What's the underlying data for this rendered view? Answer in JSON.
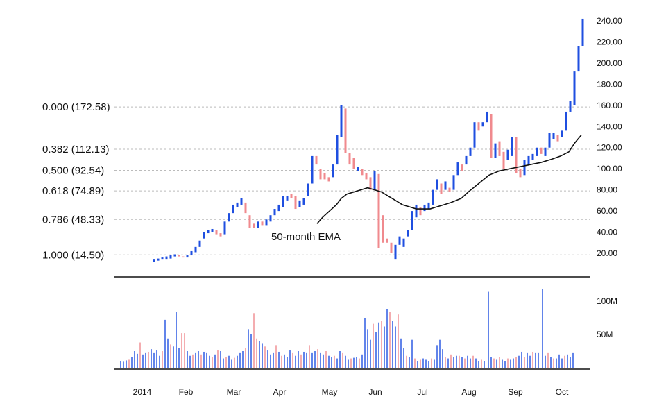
{
  "chart_data": {
    "type": "candlestick",
    "title": "",
    "x_axis": {
      "labels": [
        "2014",
        "Feb",
        "Mar",
        "Apr",
        "May",
        "Jun",
        "Jul",
        "Aug",
        "Sep",
        "Oct"
      ]
    },
    "price_axis": {
      "ticks": [
        "240.00",
        "220.00",
        "200.00",
        "180.00",
        "160.00",
        "140.00",
        "120.00",
        "100.00",
        "80.00",
        "60.00",
        "40.00",
        "20.00"
      ],
      "min": 0,
      "max": 245
    },
    "volume_axis": {
      "ticks": [
        "100M",
        "50M"
      ],
      "max": 130
    },
    "fibonacci_levels": [
      {
        "label": "0.000 (172.58)",
        "value": 158.5
      },
      {
        "label": "0.382 (112.13)",
        "value": 118.5
      },
      {
        "label": "0.500 (92.54)",
        "value": 98.5
      },
      {
        "label": "0.618 (74.89)",
        "value": 79
      },
      {
        "label": "0.786 (48.33)",
        "value": 52
      },
      {
        "label": "1.000 (14.50)",
        "value": 18.5
      }
    ],
    "annotation": "50-month EMA",
    "colors": {
      "up": "#1f4fe0",
      "down": "#f08a8e",
      "ema": "#111111",
      "grid": "#bbbbbb"
    },
    "candles": [
      [
        222,
        12,
        14,
        "u"
      ],
      [
        228,
        13,
        15,
        "u"
      ],
      [
        234,
        14,
        16,
        "u"
      ],
      [
        240,
        14,
        17,
        "u"
      ],
      [
        246,
        15,
        18,
        "u"
      ],
      [
        252,
        17,
        19,
        "u"
      ],
      [
        258,
        17,
        18,
        "d"
      ],
      [
        264,
        16,
        17,
        "d"
      ],
      [
        270,
        16,
        18,
        "u"
      ],
      [
        276,
        18,
        22,
        "u"
      ],
      [
        282,
        21,
        26,
        "u"
      ],
      [
        288,
        26,
        32,
        "u"
      ],
      [
        294,
        34,
        40,
        "u"
      ],
      [
        300,
        39,
        42,
        "u"
      ],
      [
        306,
        40,
        43,
        "u"
      ],
      [
        312,
        38,
        42,
        "d"
      ],
      [
        318,
        36,
        39,
        "d"
      ],
      [
        324,
        38,
        50,
        "u"
      ],
      [
        330,
        50,
        58,
        "u"
      ],
      [
        336,
        58,
        66,
        "u"
      ],
      [
        342,
        64,
        68,
        "u"
      ],
      [
        348,
        66,
        72,
        "u"
      ],
      [
        354,
        58,
        68,
        "d"
      ],
      [
        360,
        44,
        56,
        "d"
      ],
      [
        366,
        44,
        48,
        "d"
      ],
      [
        372,
        44,
        50,
        "u"
      ],
      [
        378,
        46,
        50,
        "d"
      ],
      [
        384,
        46,
        52,
        "u"
      ],
      [
        390,
        50,
        56,
        "u"
      ],
      [
        396,
        56,
        62,
        "u"
      ],
      [
        402,
        60,
        66,
        "u"
      ],
      [
        408,
        64,
        74,
        "u"
      ],
      [
        414,
        70,
        74,
        "u"
      ],
      [
        420,
        72,
        76,
        "d"
      ],
      [
        426,
        62,
        74,
        "d"
      ],
      [
        432,
        64,
        70,
        "u"
      ],
      [
        438,
        66,
        72,
        "u"
      ],
      [
        444,
        74,
        86,
        "u"
      ],
      [
        450,
        86,
        112,
        "u"
      ],
      [
        456,
        104,
        112,
        "d"
      ],
      [
        462,
        90,
        100,
        "d"
      ],
      [
        468,
        90,
        96,
        "d"
      ],
      [
        474,
        88,
        92,
        "d"
      ],
      [
        480,
        92,
        104,
        "u"
      ],
      [
        486,
        104,
        132,
        "u"
      ],
      [
        492,
        130,
        160,
        "u"
      ],
      [
        498,
        115,
        157,
        "d"
      ],
      [
        504,
        104,
        115,
        "d"
      ],
      [
        510,
        100,
        110,
        "d"
      ],
      [
        516,
        98,
        102,
        "u"
      ],
      [
        522,
        94,
        100,
        "d"
      ],
      [
        528,
        90,
        96,
        "d"
      ],
      [
        534,
        80,
        92,
        "d"
      ],
      [
        540,
        80,
        98,
        "u"
      ],
      [
        546,
        25,
        95,
        "d"
      ],
      [
        552,
        30,
        56,
        "d"
      ],
      [
        558,
        30,
        34,
        "d"
      ],
      [
        564,
        20,
        30,
        "d"
      ],
      [
        570,
        14,
        28,
        "u"
      ],
      [
        576,
        28,
        36,
        "u"
      ],
      [
        582,
        26,
        34,
        "u"
      ],
      [
        588,
        36,
        42,
        "u"
      ],
      [
        594,
        42,
        60,
        "u"
      ],
      [
        600,
        54,
        66,
        "u"
      ],
      [
        606,
        56,
        64,
        "d"
      ],
      [
        612,
        60,
        66,
        "u"
      ],
      [
        618,
        62,
        68,
        "u"
      ],
      [
        624,
        66,
        80,
        "u"
      ],
      [
        630,
        80,
        90,
        "u"
      ],
      [
        636,
        76,
        86,
        "d"
      ],
      [
        642,
        80,
        88,
        "u"
      ],
      [
        648,
        78,
        82,
        "d"
      ],
      [
        654,
        80,
        94,
        "u"
      ],
      [
        660,
        94,
        106,
        "u"
      ],
      [
        666,
        98,
        104,
        "d"
      ],
      [
        672,
        104,
        112,
        "u"
      ],
      [
        678,
        112,
        120,
        "u"
      ],
      [
        684,
        120,
        144,
        "u"
      ],
      [
        690,
        136,
        144,
        "d"
      ],
      [
        696,
        140,
        144,
        "u"
      ],
      [
        702,
        144,
        154,
        "u"
      ],
      [
        708,
        110,
        152,
        "d"
      ],
      [
        714,
        110,
        124,
        "u"
      ],
      [
        720,
        112,
        126,
        "d"
      ],
      [
        726,
        100,
        116,
        "d"
      ],
      [
        732,
        108,
        118,
        "u"
      ],
      [
        738,
        112,
        130,
        "u"
      ],
      [
        744,
        96,
        130,
        "d"
      ],
      [
        750,
        92,
        100,
        "d"
      ],
      [
        756,
        94,
        108,
        "u"
      ],
      [
        762,
        104,
        112,
        "u"
      ],
      [
        768,
        108,
        114,
        "u"
      ],
      [
        774,
        112,
        120,
        "u"
      ],
      [
        780,
        114,
        120,
        "d"
      ],
      [
        786,
        112,
        120,
        "u"
      ],
      [
        792,
        120,
        134,
        "u"
      ],
      [
        798,
        128,
        134,
        "u"
      ],
      [
        804,
        126,
        132,
        "d"
      ],
      [
        810,
        130,
        136,
        "u"
      ],
      [
        816,
        136,
        154,
        "u"
      ],
      [
        822,
        154,
        164,
        "u"
      ],
      [
        828,
        160,
        192,
        "u"
      ],
      [
        834,
        192,
        216,
        "u"
      ],
      [
        840,
        216,
        242,
        "u"
      ]
    ],
    "ema": [
      [
        457,
        48
      ],
      [
        465,
        54
      ],
      [
        475,
        60
      ],
      [
        485,
        66
      ],
      [
        492,
        72
      ],
      [
        500,
        76
      ],
      [
        510,
        78
      ],
      [
        520,
        80
      ],
      [
        530,
        82
      ],
      [
        540,
        80
      ],
      [
        550,
        78
      ],
      [
        560,
        74
      ],
      [
        570,
        70
      ],
      [
        580,
        66
      ],
      [
        590,
        64
      ],
      [
        600,
        62
      ],
      [
        610,
        62
      ],
      [
        620,
        62
      ],
      [
        630,
        64
      ],
      [
        640,
        66
      ],
      [
        650,
        68
      ],
      [
        665,
        72
      ],
      [
        675,
        78
      ],
      [
        690,
        86
      ],
      [
        705,
        94
      ],
      [
        720,
        98
      ],
      [
        735,
        100
      ],
      [
        750,
        102
      ],
      [
        765,
        104
      ],
      [
        780,
        106
      ],
      [
        795,
        109
      ],
      [
        808,
        112
      ],
      [
        820,
        116
      ],
      [
        828,
        124
      ],
      [
        838,
        132
      ]
    ],
    "volume": [
      [
        174,
        10,
        "u"
      ],
      [
        178,
        9,
        "u"
      ],
      [
        182,
        11,
        "u"
      ],
      [
        186,
        12,
        "d"
      ],
      [
        190,
        16,
        "u"
      ],
      [
        194,
        25,
        "u"
      ],
      [
        198,
        21,
        "u"
      ],
      [
        202,
        38,
        "d"
      ],
      [
        206,
        20,
        "u"
      ],
      [
        210,
        22,
        "u"
      ],
      [
        214,
        24,
        "d"
      ],
      [
        218,
        28,
        "u"
      ],
      [
        222,
        22,
        "u"
      ],
      [
        226,
        26,
        "u"
      ],
      [
        230,
        18,
        "u"
      ],
      [
        234,
        25,
        "d"
      ],
      [
        238,
        72,
        "u"
      ],
      [
        242,
        44,
        "u"
      ],
      [
        246,
        35,
        "d"
      ],
      [
        250,
        32,
        "u"
      ],
      [
        254,
        84,
        "u"
      ],
      [
        258,
        30,
        "u"
      ],
      [
        262,
        52,
        "d"
      ],
      [
        266,
        52,
        "d"
      ],
      [
        270,
        25,
        "u"
      ],
      [
        274,
        18,
        "u"
      ],
      [
        278,
        20,
        "d"
      ],
      [
        282,
        22,
        "u"
      ],
      [
        286,
        25,
        "u"
      ],
      [
        290,
        20,
        "d"
      ],
      [
        294,
        24,
        "u"
      ],
      [
        298,
        22,
        "u"
      ],
      [
        302,
        18,
        "u"
      ],
      [
        306,
        16,
        "d"
      ],
      [
        310,
        20,
        "u"
      ],
      [
        314,
        26,
        "d"
      ],
      [
        318,
        25,
        "u"
      ],
      [
        322,
        14,
        "u"
      ],
      [
        326,
        16,
        "d"
      ],
      [
        330,
        18,
        "u"
      ],
      [
        334,
        12,
        "u"
      ],
      [
        338,
        15,
        "d"
      ],
      [
        342,
        18,
        "u"
      ],
      [
        346,
        22,
        "u"
      ],
      [
        350,
        25,
        "u"
      ],
      [
        354,
        30,
        "d"
      ],
      [
        358,
        58,
        "u"
      ],
      [
        362,
        50,
        "u"
      ],
      [
        366,
        82,
        "d"
      ],
      [
        370,
        44,
        "d"
      ],
      [
        374,
        40,
        "u"
      ],
      [
        378,
        36,
        "u"
      ],
      [
        382,
        32,
        "d"
      ],
      [
        386,
        26,
        "u"
      ],
      [
        390,
        20,
        "u"
      ],
      [
        394,
        22,
        "u"
      ],
      [
        398,
        34,
        "d"
      ],
      [
        402,
        24,
        "u"
      ],
      [
        406,
        18,
        "d"
      ],
      [
        410,
        20,
        "u"
      ],
      [
        414,
        16,
        "u"
      ],
      [
        418,
        26,
        "u"
      ],
      [
        422,
        22,
        "d"
      ],
      [
        426,
        18,
        "u"
      ],
      [
        430,
        25,
        "u"
      ],
      [
        434,
        20,
        "d"
      ],
      [
        438,
        24,
        "u"
      ],
      [
        442,
        22,
        "u"
      ],
      [
        446,
        34,
        "d"
      ],
      [
        450,
        22,
        "u"
      ],
      [
        454,
        25,
        "u"
      ],
      [
        458,
        28,
        "d"
      ],
      [
        462,
        22,
        "u"
      ],
      [
        466,
        20,
        "u"
      ],
      [
        470,
        25,
        "d"
      ],
      [
        474,
        18,
        "u"
      ],
      [
        478,
        16,
        "u"
      ],
      [
        482,
        18,
        "d"
      ],
      [
        486,
        14,
        "u"
      ],
      [
        490,
        25,
        "u"
      ],
      [
        494,
        22,
        "d"
      ],
      [
        498,
        18,
        "u"
      ],
      [
        502,
        12,
        "u"
      ],
      [
        506,
        14,
        "d"
      ],
      [
        510,
        15,
        "u"
      ],
      [
        514,
        16,
        "u"
      ],
      [
        518,
        14,
        "d"
      ],
      [
        522,
        20,
        "u"
      ],
      [
        526,
        75,
        "u"
      ],
      [
        530,
        58,
        "u"
      ],
      [
        534,
        42,
        "u"
      ],
      [
        538,
        66,
        "d"
      ],
      [
        542,
        54,
        "u"
      ],
      [
        546,
        68,
        "u"
      ],
      [
        550,
        70,
        "d"
      ],
      [
        554,
        62,
        "u"
      ],
      [
        558,
        88,
        "u"
      ],
      [
        562,
        84,
        "d"
      ],
      [
        566,
        70,
        "u"
      ],
      [
        570,
        62,
        "u"
      ],
      [
        574,
        80,
        "d"
      ],
      [
        578,
        44,
        "u"
      ],
      [
        582,
        30,
        "u"
      ],
      [
        586,
        18,
        "d"
      ],
      [
        590,
        16,
        "u"
      ],
      [
        594,
        42,
        "u"
      ],
      [
        598,
        14,
        "d"
      ],
      [
        602,
        10,
        "u"
      ],
      [
        606,
        12,
        "d"
      ],
      [
        610,
        14,
        "u"
      ],
      [
        614,
        12,
        "u"
      ],
      [
        618,
        10,
        "u"
      ],
      [
        622,
        14,
        "d"
      ],
      [
        626,
        12,
        "u"
      ],
      [
        630,
        34,
        "u"
      ],
      [
        634,
        42,
        "u"
      ],
      [
        638,
        28,
        "u"
      ],
      [
        642,
        16,
        "d"
      ],
      [
        646,
        14,
        "u"
      ],
      [
        650,
        20,
        "d"
      ],
      [
        654,
        16,
        "u"
      ],
      [
        658,
        18,
        "u"
      ],
      [
        662,
        18,
        "d"
      ],
      [
        666,
        16,
        "u"
      ],
      [
        670,
        14,
        "d"
      ],
      [
        674,
        18,
        "u"
      ],
      [
        678,
        14,
        "u"
      ],
      [
        682,
        18,
        "d"
      ],
      [
        686,
        14,
        "u"
      ],
      [
        690,
        10,
        "u"
      ],
      [
        694,
        12,
        "d"
      ],
      [
        698,
        10,
        "u"
      ],
      [
        704,
        114,
        "u"
      ],
      [
        708,
        16,
        "u"
      ],
      [
        712,
        14,
        "d"
      ],
      [
        716,
        12,
        "u"
      ],
      [
        720,
        16,
        "d"
      ],
      [
        724,
        12,
        "u"
      ],
      [
        728,
        10,
        "u"
      ],
      [
        732,
        14,
        "d"
      ],
      [
        736,
        12,
        "u"
      ],
      [
        740,
        14,
        "u"
      ],
      [
        744,
        16,
        "d"
      ],
      [
        748,
        18,
        "u"
      ],
      [
        752,
        24,
        "u"
      ],
      [
        756,
        16,
        "d"
      ],
      [
        760,
        22,
        "u"
      ],
      [
        764,
        18,
        "u"
      ],
      [
        768,
        24,
        "d"
      ],
      [
        772,
        22,
        "u"
      ],
      [
        776,
        22,
        "u"
      ],
      [
        782,
        118,
        "u"
      ],
      [
        786,
        18,
        "u"
      ],
      [
        790,
        22,
        "d"
      ],
      [
        794,
        16,
        "u"
      ],
      [
        798,
        14,
        "d"
      ],
      [
        802,
        14,
        "u"
      ],
      [
        806,
        20,
        "u"
      ],
      [
        810,
        14,
        "u"
      ],
      [
        814,
        18,
        "d"
      ],
      [
        818,
        20,
        "u"
      ],
      [
        822,
        16,
        "u"
      ],
      [
        826,
        22,
        "u"
      ]
    ]
  }
}
